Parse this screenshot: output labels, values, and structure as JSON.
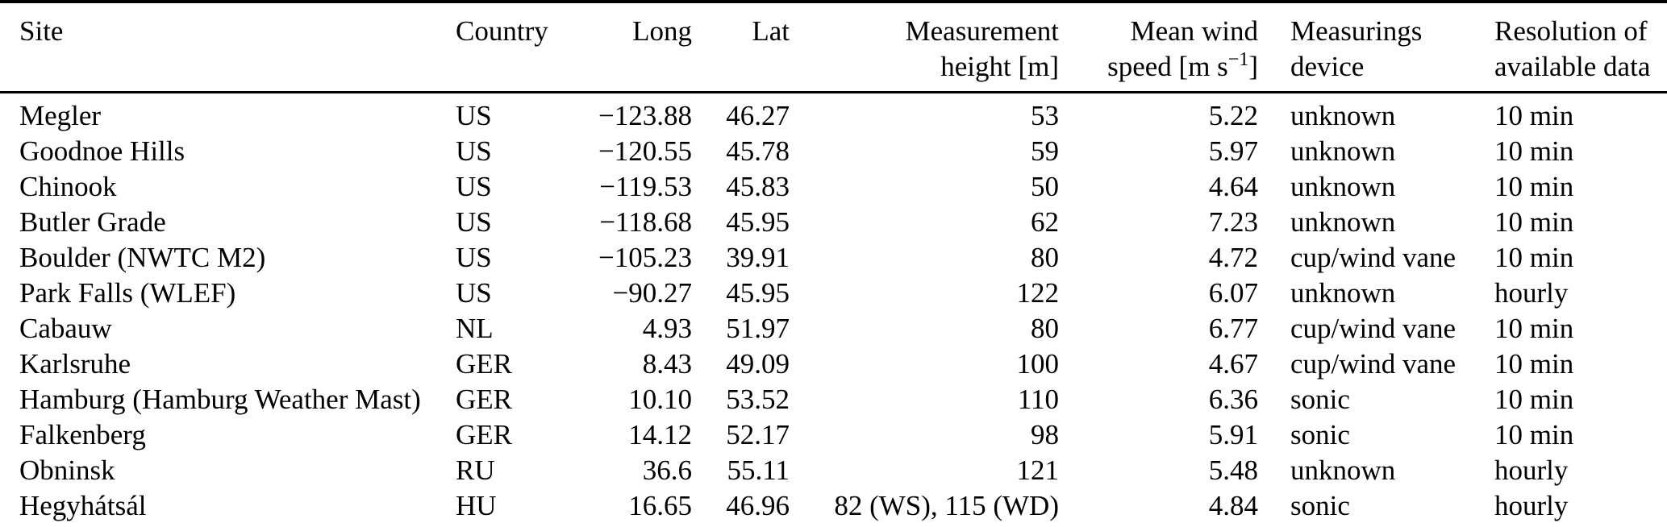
{
  "page": {
    "background_color": "#ffffff",
    "text_color": "#000000"
  },
  "table": {
    "header": {
      "site": "Site",
      "country": "Country",
      "long": "Long",
      "lat": "Lat",
      "height_line1": "Measurement",
      "height_line2": "height [m]",
      "speed_line1": "Mean wind",
      "speed_line2_pre": "speed [m s",
      "speed_line2_sup": "−1",
      "speed_line2_post": "]",
      "device_line1": "Measurings",
      "device_line2": "device",
      "resolution_line1": "Resolution of",
      "resolution_line2": "available data"
    },
    "rows": [
      {
        "site": "Megler",
        "country": "US",
        "long": "−123.88",
        "lat": "46.27",
        "height": "53",
        "speed": "5.22",
        "device": "unknown",
        "resolution": "10 min"
      },
      {
        "site": "Goodnoe Hills",
        "country": "US",
        "long": "−120.55",
        "lat": "45.78",
        "height": "59",
        "speed": "5.97",
        "device": "unknown",
        "resolution": "10 min"
      },
      {
        "site": "Chinook",
        "country": "US",
        "long": "−119.53",
        "lat": "45.83",
        "height": "50",
        "speed": "4.64",
        "device": "unknown",
        "resolution": "10 min"
      },
      {
        "site": "Butler Grade",
        "country": "US",
        "long": "−118.68",
        "lat": "45.95",
        "height": "62",
        "speed": "7.23",
        "device": "unknown",
        "resolution": "10 min"
      },
      {
        "site": "Boulder (NWTC M2)",
        "country": "US",
        "long": "−105.23",
        "lat": "39.91",
        "height": "80",
        "speed": "4.72",
        "device": "cup/wind vane",
        "resolution": "10 min"
      },
      {
        "site": "Park Falls (WLEF)",
        "country": "US",
        "long": "−90.27",
        "lat": "45.95",
        "height": "122",
        "speed": "6.07",
        "device": "unknown",
        "resolution": "hourly"
      },
      {
        "site": "Cabauw",
        "country": "NL",
        "long": "4.93",
        "lat": "51.97",
        "height": "80",
        "speed": "6.77",
        "device": "cup/wind vane",
        "resolution": "10 min"
      },
      {
        "site": "Karlsruhe",
        "country": "GER",
        "long": "8.43",
        "lat": "49.09",
        "height": "100",
        "speed": "4.67",
        "device": "cup/wind vane",
        "resolution": "10 min"
      },
      {
        "site": "Hamburg (Hamburg Weather Mast)",
        "country": "GER",
        "long": "10.10",
        "lat": "53.52",
        "height": "110",
        "speed": "6.36",
        "device": "sonic",
        "resolution": "10 min"
      },
      {
        "site": "Falkenberg",
        "country": "GER",
        "long": "14.12",
        "lat": "52.17",
        "height": "98",
        "speed": "5.91",
        "device": "sonic",
        "resolution": "10 min"
      },
      {
        "site": "Obninsk",
        "country": "RU",
        "long": "36.6",
        "lat": "55.11",
        "height": "121",
        "speed": "5.48",
        "device": "unknown",
        "resolution": "hourly"
      },
      {
        "site": "Hegyhátsál",
        "country": "HU",
        "long": "16.65",
        "lat": "46.96",
        "height": "82 (WS), 115 (WD)",
        "speed": "4.84",
        "device": "sonic",
        "resolution": "hourly"
      }
    ]
  }
}
